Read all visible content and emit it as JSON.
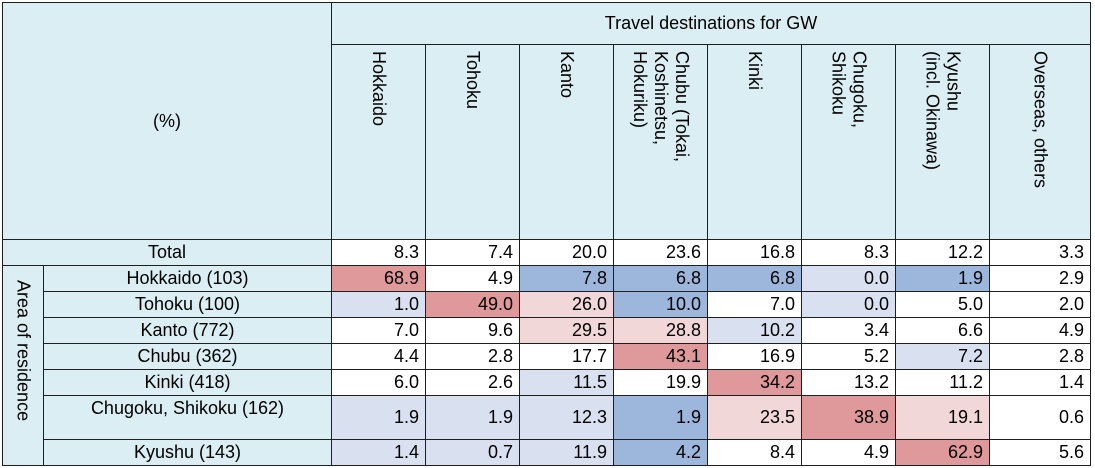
{
  "chart_data": {
    "type": "table",
    "title": "Travel destinations for GW",
    "corner_label": "(%)",
    "row_group_label": "Area of residence",
    "columns": [
      "Hokkaido",
      "Tohoku",
      "Kanto",
      "Chubu (Tokai,\nKoshinetsu,\nHokuriku)",
      "Kinki",
      "Chugoku,\nShikoku",
      "Kyushu\n(incl. Okinawa)",
      "Overseas, others"
    ],
    "rows": [
      {
        "label": "Total",
        "values": [
          "8.3",
          "7.4",
          "20.0",
          "23.6",
          "16.8",
          "8.3",
          "12.2",
          "3.3"
        ]
      },
      {
        "label": "Hokkaido (103)",
        "values": [
          "68.9",
          "4.9",
          "7.8",
          "6.8",
          "6.8",
          "0.0",
          "1.9",
          "2.9"
        ]
      },
      {
        "label": "Tohoku (100)",
        "values": [
          "1.0",
          "49.0",
          "26.0",
          "10.0",
          "7.0",
          "0.0",
          "5.0",
          "2.0"
        ]
      },
      {
        "label": "Kanto (772)",
        "values": [
          "7.0",
          "9.6",
          "29.5",
          "28.8",
          "10.2",
          "3.4",
          "6.6",
          "4.9"
        ]
      },
      {
        "label": "Chubu (362)",
        "values": [
          "4.4",
          "2.8",
          "17.7",
          "43.1",
          "16.9",
          "5.2",
          "7.2",
          "2.8"
        ]
      },
      {
        "label": "Kinki (418)",
        "values": [
          "6.0",
          "2.6",
          "11.5",
          "19.9",
          "34.2",
          "13.2",
          "11.2",
          "1.4"
        ]
      },
      {
        "label": "Chugoku, Shikoku (162)",
        "values": [
          "1.9",
          "1.9",
          "12.3",
          "1.9",
          "23.5",
          "38.9",
          "19.1",
          "0.6"
        ]
      },
      {
        "label": "Kyushu (143)",
        "values": [
          "1.4",
          "0.7",
          "11.9",
          "4.2",
          "8.4",
          "4.9",
          "62.9",
          "5.6"
        ]
      }
    ],
    "cell_colors": [
      [
        "#ffffff",
        "#ffffff",
        "#ffffff",
        "#ffffff",
        "#ffffff",
        "#ffffff",
        "#ffffff",
        "#ffffff"
      ],
      [
        "#e0999b",
        "#ffffff",
        "#9db6dc",
        "#9db6dc",
        "#9db6dc",
        "#d9e1f0",
        "#9db6dc",
        "#ffffff"
      ],
      [
        "#d9e1f0",
        "#e0999b",
        "#f2d7d8",
        "#9db6dc",
        "#ffffff",
        "#d9e1f0",
        "#ffffff",
        "#ffffff"
      ],
      [
        "#ffffff",
        "#ffffff",
        "#f2d7d8",
        "#f2d7d8",
        "#d9e1f0",
        "#ffffff",
        "#ffffff",
        "#ffffff"
      ],
      [
        "#ffffff",
        "#ffffff",
        "#ffffff",
        "#e0999b",
        "#ffffff",
        "#ffffff",
        "#d9e1f0",
        "#ffffff"
      ],
      [
        "#ffffff",
        "#ffffff",
        "#d9e1f0",
        "#ffffff",
        "#e0999b",
        "#ffffff",
        "#ffffff",
        "#ffffff"
      ],
      [
        "#d9e1f0",
        "#d9e1f0",
        "#d9e1f0",
        "#9db6dc",
        "#f2d7d8",
        "#e0999b",
        "#f2d7d8",
        "#ffffff"
      ],
      [
        "#d9e1f0",
        "#d9e1f0",
        "#d9e1f0",
        "#9db6dc",
        "#ffffff",
        "#ffffff",
        "#e0999b",
        "#ffffff"
      ]
    ]
  }
}
